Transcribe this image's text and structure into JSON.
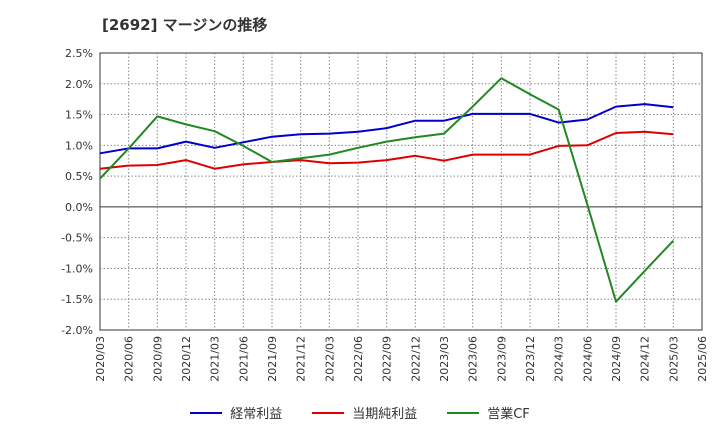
{
  "chart_data": {
    "type": "line",
    "title": "[2692]  マージンの推移",
    "x": [
      "2020/03",
      "2020/06",
      "2020/09",
      "2020/12",
      "2021/03",
      "2021/06",
      "2021/09",
      "2021/12",
      "2022/03",
      "2022/06",
      "2022/09",
      "2022/12",
      "2023/03",
      "2023/06",
      "2023/09",
      "2023/12",
      "2024/03",
      "2024/06",
      "2024/09",
      "2024/12",
      "2025/03",
      "2025/06"
    ],
    "yticks": [
      "2.5%",
      "2.0%",
      "1.5%",
      "1.0%",
      "0.5%",
      "0.0%",
      "-0.5%",
      "-1.0%",
      "-1.5%",
      "-2.0%"
    ],
    "ylim": [
      -2.0,
      2.5
    ],
    "grid": true,
    "legend_position": "bottom",
    "series": [
      {
        "name": "経常利益",
        "color": "#0000cc",
        "values": [
          0.87,
          0.95,
          0.95,
          1.06,
          0.96,
          1.05,
          1.14,
          1.18,
          1.19,
          1.22,
          1.28,
          1.4,
          1.4,
          1.51,
          1.51,
          1.51,
          1.37,
          1.42,
          1.63,
          1.67,
          1.62,
          null
        ]
      },
      {
        "name": "当期純利益",
        "color": "#dd0000",
        "values": [
          0.62,
          0.67,
          0.68,
          0.76,
          0.62,
          0.69,
          0.73,
          0.76,
          0.71,
          0.72,
          0.76,
          0.83,
          0.75,
          0.85,
          0.85,
          0.85,
          0.99,
          1.0,
          1.2,
          1.22,
          1.18,
          null
        ]
      },
      {
        "name": "営業CF",
        "color": "#228822",
        "values": [
          0.46,
          0.95,
          1.47,
          1.34,
          1.23,
          0.99,
          0.73,
          0.79,
          0.85,
          0.96,
          1.06,
          1.13,
          1.19,
          1.63,
          2.09,
          1.83,
          1.58,
          0.04,
          -1.54,
          -1.04,
          -0.55,
          null
        ]
      }
    ]
  }
}
